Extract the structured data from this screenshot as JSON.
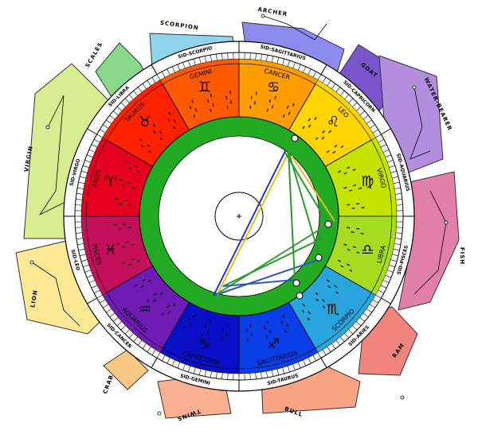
{
  "constellations": [
    {
      "label": "SCORPION"
    },
    {
      "label": "ARCHER"
    },
    {
      "label": "GOAT"
    },
    {
      "label": "WATER-BEARER"
    },
    {
      "label": "FISH"
    },
    {
      "label": "RAM"
    },
    {
      "label": "BULL"
    },
    {
      "label": "TWINS"
    },
    {
      "label": "CRAB"
    },
    {
      "label": "LION"
    },
    {
      "label": "VIRGIN"
    },
    {
      "label": "SCALES"
    }
  ],
  "signs": [
    {
      "name": "GEMINI",
      "symbol": "♊",
      "color": "#ff5a00"
    },
    {
      "name": "CANCER",
      "symbol": "♋",
      "color": "#ff9c00"
    },
    {
      "name": "LEO",
      "symbol": "♌",
      "color": "#ffd400"
    },
    {
      "name": "VIRGO",
      "symbol": "♍",
      "color": "#c4e400"
    },
    {
      "name": "LIBRA",
      "symbol": "♎",
      "color": "#a6dc20"
    },
    {
      "name": "SCORPIO",
      "symbol": "♏",
      "color": "#2aa4dc"
    },
    {
      "name": "SAGITTARIUS",
      "symbol": "♐",
      "color": "#0a3ee6"
    },
    {
      "name": "CAPRICORN",
      "symbol": "♑",
      "color": "#0a10c8"
    },
    {
      "name": "AQUARIUS",
      "symbol": "♒",
      "color": "#6e1cb4"
    },
    {
      "name": "PISCES",
      "symbol": "♓",
      "color": "#c4105a"
    },
    {
      "name": "ARIES",
      "symbol": "♈",
      "color": "#e4001e"
    },
    {
      "name": "TAURUS",
      "symbol": "♉",
      "color": "#ff2200"
    }
  ],
  "sidereal": [
    "SID-SCORPIO",
    "SID-SAGITTARIUS",
    "SID-CAPRICORN",
    "SID-AQUARIUS",
    "SID-PISCES",
    "SID-ARIES",
    "SID-TAURUS",
    "SID-GEMINI",
    "SID-CANCER",
    "SID-LEO",
    "SID-VIRGO",
    "SID-LIBRA"
  ]
}
